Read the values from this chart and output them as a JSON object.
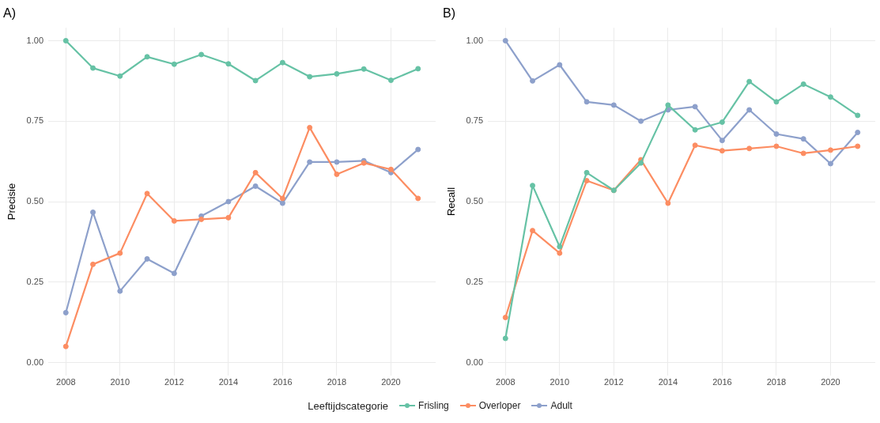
{
  "chart_data": [
    {
      "type": "line",
      "title": "A)",
      "ylabel": "Precisie",
      "x": [
        2008,
        2009,
        2010,
        2011,
        2012,
        2013,
        2014,
        2015,
        2016,
        2017,
        2018,
        2019,
        2020,
        2021
      ],
      "xlim": [
        2007.35,
        2021.65
      ],
      "xticks": [
        2008,
        2010,
        2012,
        2014,
        2016,
        2018,
        2020
      ],
      "ylim": [
        -0.04,
        1.04
      ],
      "yticks": [
        {
          "value": 0,
          "label": "0.00"
        },
        {
          "value": 0.25,
          "label": "0.25"
        },
        {
          "value": 0.5,
          "label": "0.50"
        },
        {
          "value": 0.75,
          "label": "0.75"
        },
        {
          "value": 1,
          "label": "1.00"
        }
      ],
      "grid": true,
      "marker": "circle",
      "line_style": "solid",
      "legend": "bottom",
      "legend_title": "Leeftijdscategorie",
      "series": [
        {
          "name": "Frisling",
          "color": "#66c2a5",
          "values": [
            1.0,
            0.915,
            0.89,
            0.95,
            0.927,
            0.957,
            0.928,
            0.876,
            0.932,
            0.888,
            0.897,
            0.912,
            0.877,
            0.913
          ]
        },
        {
          "name": "Overloper",
          "color": "#fc8d62",
          "values": [
            0.05,
            0.305,
            0.34,
            0.525,
            0.44,
            0.445,
            0.45,
            0.59,
            0.51,
            0.73,
            0.585,
            0.62,
            0.6,
            0.51
          ]
        },
        {
          "name": "Adult",
          "color": "#8da0cb",
          "values": [
            0.155,
            0.467,
            0.222,
            0.322,
            0.277,
            0.455,
            0.5,
            0.548,
            0.495,
            0.623,
            0.623,
            0.627,
            0.59,
            0.662
          ]
        }
      ]
    },
    {
      "type": "line",
      "title": "B)",
      "ylabel": "Recall",
      "x": [
        2008,
        2009,
        2010,
        2011,
        2012,
        2013,
        2014,
        2015,
        2016,
        2017,
        2018,
        2019,
        2020,
        2021
      ],
      "xlim": [
        2007.35,
        2021.65
      ],
      "xticks": [
        2008,
        2010,
        2012,
        2014,
        2016,
        2018,
        2020
      ],
      "ylim": [
        -0.04,
        1.04
      ],
      "yticks": [
        {
          "value": 0,
          "label": "0.00"
        },
        {
          "value": 0.25,
          "label": "0.25"
        },
        {
          "value": 0.5,
          "label": "0.50"
        },
        {
          "value": 0.75,
          "label": "0.75"
        },
        {
          "value": 1,
          "label": "1.00"
        }
      ],
      "grid": true,
      "marker": "circle",
      "line_style": "solid",
      "legend": "bottom",
      "series": [
        {
          "name": "Frisling",
          "color": "#66c2a5",
          "values": [
            0.075,
            0.55,
            0.36,
            0.59,
            0.535,
            0.62,
            0.8,
            0.723,
            0.747,
            0.873,
            0.81,
            0.865,
            0.825,
            0.768
          ]
        },
        {
          "name": "Overloper",
          "color": "#fc8d62",
          "values": [
            0.14,
            0.41,
            0.34,
            0.565,
            0.535,
            0.63,
            0.495,
            0.675,
            0.658,
            0.665,
            0.672,
            0.65,
            0.66,
            0.672
          ]
        },
        {
          "name": "Adult",
          "color": "#8da0cb",
          "values": [
            1.0,
            0.875,
            0.925,
            0.81,
            0.8,
            0.75,
            0.785,
            0.795,
            0.69,
            0.785,
            0.71,
            0.695,
            0.618,
            0.715
          ]
        }
      ]
    }
  ]
}
